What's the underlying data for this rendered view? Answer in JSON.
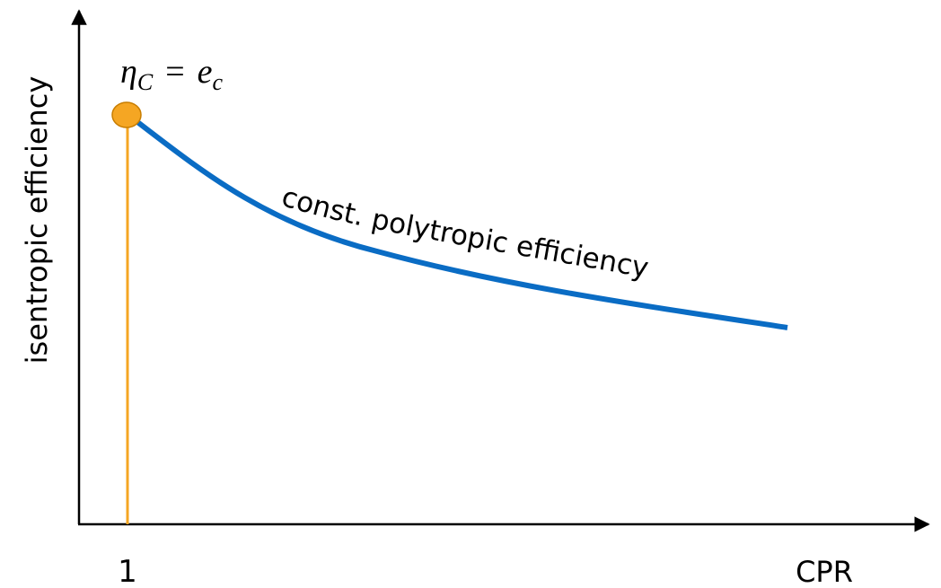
{
  "axes": {
    "y_label": "isentropic efficiency",
    "x_label": "CPR",
    "x_tick": "1"
  },
  "equation": {
    "lhs": "η",
    "lhs_sub": "C",
    "sign": "=",
    "rhs": "e",
    "rhs_sub": "c"
  },
  "curve_label": "const. polytropic efficiency"
}
